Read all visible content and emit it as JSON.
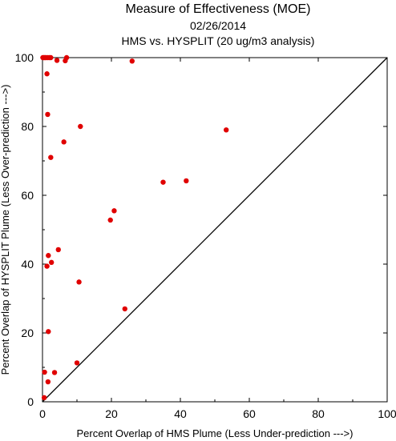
{
  "chart_data": {
    "type": "scatter",
    "title": "Measure of Effectiveness (MOE)",
    "subtitle": "02/26/2014",
    "subtitle2": "HMS vs. HYSPLIT  (20 ug/m3 analysis)",
    "xlabel": "Percent Overlap of HMS Plume (Less Under-prediction --->)",
    "ylabel": "Percent Overlap of HYSPLIT Plume (Less Over-prediction --->)",
    "xlim": [
      0,
      100
    ],
    "ylim": [
      0,
      100
    ],
    "x_ticks": [
      "0",
      "20",
      "40",
      "60",
      "80",
      "100"
    ],
    "y_ticks": [
      "0",
      "20",
      "40",
      "60",
      "80",
      "100"
    ],
    "grid": false,
    "diagonal_line": true,
    "point_color": "#e00000",
    "points": [
      {
        "x": 0.1,
        "y": 100
      },
      {
        "x": 0.4,
        "y": 100
      },
      {
        "x": 0.7,
        "y": 100
      },
      {
        "x": 1.0,
        "y": 100
      },
      {
        "x": 1.5,
        "y": 100
      },
      {
        "x": 2.0,
        "y": 100
      },
      {
        "x": 2.4,
        "y": 100
      },
      {
        "x": 4.2,
        "y": 99.2
      },
      {
        "x": 6.6,
        "y": 99.1
      },
      {
        "x": 7.0,
        "y": 100
      },
      {
        "x": 26.0,
        "y": 99.0
      },
      {
        "x": 1.3,
        "y": 95.3
      },
      {
        "x": 1.5,
        "y": 83.5
      },
      {
        "x": 11.0,
        "y": 80.0
      },
      {
        "x": 6.2,
        "y": 75.5
      },
      {
        "x": 2.4,
        "y": 71.0
      },
      {
        "x": 53.3,
        "y": 79.0
      },
      {
        "x": 35.0,
        "y": 63.8
      },
      {
        "x": 41.7,
        "y": 64.2
      },
      {
        "x": 20.8,
        "y": 55.5
      },
      {
        "x": 19.7,
        "y": 52.8
      },
      {
        "x": 4.6,
        "y": 44.2
      },
      {
        "x": 1.7,
        "y": 42.5
      },
      {
        "x": 2.6,
        "y": 40.5
      },
      {
        "x": 1.3,
        "y": 39.4
      },
      {
        "x": 10.6,
        "y": 34.8
      },
      {
        "x": 23.9,
        "y": 27.0
      },
      {
        "x": 1.7,
        "y": 20.4
      },
      {
        "x": 10.0,
        "y": 11.3
      },
      {
        "x": 0.6,
        "y": 8.6
      },
      {
        "x": 3.5,
        "y": 8.5
      },
      {
        "x": 1.6,
        "y": 5.8
      },
      {
        "x": 0.5,
        "y": 1.2
      }
    ]
  }
}
